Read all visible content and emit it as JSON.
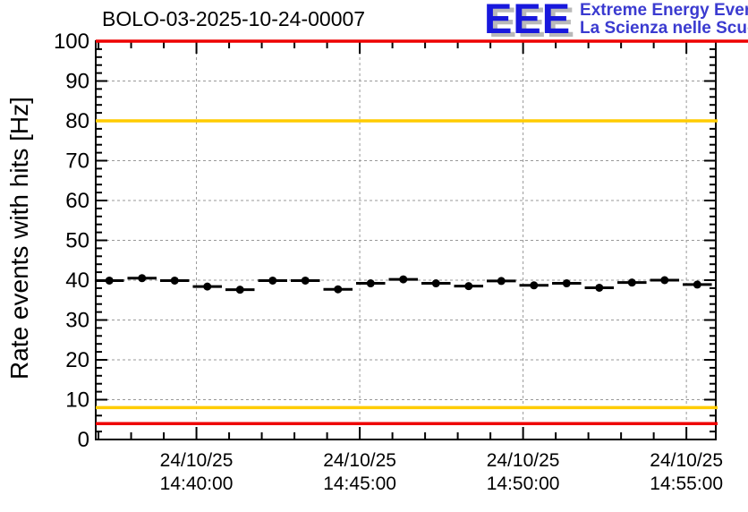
{
  "logo": {
    "acronym": "EEE",
    "line1": "Extreme Energy Events",
    "line2": "La Scienza nelle Scuole",
    "acronym_color": "#1818dd",
    "text_color": "#3b3bd0",
    "shadow_color": "#b9b9b9"
  },
  "chart_data": {
    "type": "scatter",
    "title": "BOLO-03-2025-10-24-00007",
    "ylabel": "Rate events with hits [Hz]",
    "xlabel": "",
    "ylim": [
      0,
      100
    ],
    "y_major_step": 10,
    "y_minor_step": 2,
    "y_tick_labels": [
      "0",
      "10",
      "20",
      "30",
      "40",
      "50",
      "60",
      "70",
      "80",
      "90",
      "100"
    ],
    "x_start": "14:36:55",
    "x_end": "14:55:54",
    "x_minor_interval_seconds": 60,
    "x_major_ticks": [
      {
        "date": "24/10/25",
        "time": "14:40:00"
      },
      {
        "date": "24/10/25",
        "time": "14:45:00"
      },
      {
        "date": "24/10/25",
        "time": "14:50:00"
      },
      {
        "date": "24/10/25",
        "time": "14:55:00"
      }
    ],
    "grid": true,
    "legend": null,
    "bin_width_seconds": 60,
    "points": [
      {
        "time": "14:37:20",
        "rate_hz": 39.9
      },
      {
        "time": "14:38:20",
        "rate_hz": 40.5
      },
      {
        "time": "14:39:20",
        "rate_hz": 39.9
      },
      {
        "time": "14:40:20",
        "rate_hz": 38.4
      },
      {
        "time": "14:41:20",
        "rate_hz": 37.6
      },
      {
        "time": "14:42:20",
        "rate_hz": 39.9
      },
      {
        "time": "14:43:20",
        "rate_hz": 39.9
      },
      {
        "time": "14:44:20",
        "rate_hz": 37.7
      },
      {
        "time": "14:45:20",
        "rate_hz": 39.2
      },
      {
        "time": "14:46:20",
        "rate_hz": 40.2
      },
      {
        "time": "14:47:20",
        "rate_hz": 39.2
      },
      {
        "time": "14:48:20",
        "rate_hz": 38.5
      },
      {
        "time": "14:49:20",
        "rate_hz": 39.8
      },
      {
        "time": "14:50:20",
        "rate_hz": 38.7
      },
      {
        "time": "14:51:20",
        "rate_hz": 39.2
      },
      {
        "time": "14:52:20",
        "rate_hz": 38.1
      },
      {
        "time": "14:53:20",
        "rate_hz": 39.4
      },
      {
        "time": "14:54:20",
        "rate_hz": 40.0
      },
      {
        "time": "14:55:20",
        "rate_hz": 38.9
      }
    ],
    "threshold_lines": [
      {
        "name": "upper-alarm",
        "value": 100,
        "color": "#ee0000",
        "full_width": true
      },
      {
        "name": "upper-warning",
        "value": 80,
        "color": "#ffcc00",
        "full_width": false
      },
      {
        "name": "lower-warning",
        "value": 8,
        "color": "#ffcc00",
        "full_width": false
      },
      {
        "name": "lower-alarm",
        "value": 4,
        "color": "#ee0000",
        "full_width": false
      }
    ],
    "colors": {
      "marker": "#000000",
      "frame": "#000000",
      "grid": "#999999"
    }
  }
}
